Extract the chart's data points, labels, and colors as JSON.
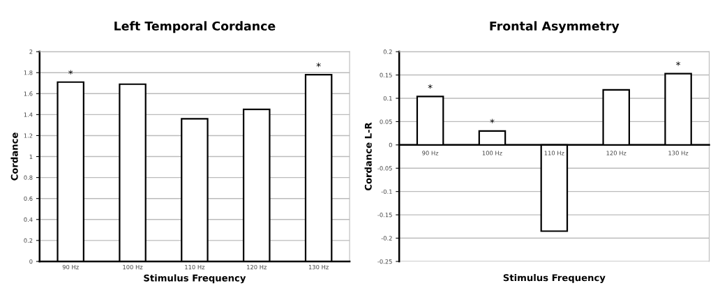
{
  "chart_data": [
    {
      "type": "bar",
      "title": "Left Temporal Cordance",
      "xlabel": "Stimulus Frequency",
      "ylabel": "Cordance",
      "categories": [
        "90 Hz",
        "100 Hz",
        "110 Hz",
        "120 Hz",
        "130 Hz"
      ],
      "values": [
        1.71,
        1.69,
        1.36,
        1.45,
        1.78
      ],
      "color": "#ffffff",
      "ylim": [
        0,
        2
      ],
      "yticks": [
        0,
        0.2,
        0.4,
        0.6,
        0.8,
        1,
        1.2,
        1.4,
        1.6,
        1.8,
        2
      ],
      "grid": "y",
      "annotations": [
        {
          "text": "*",
          "x": "90 Hz",
          "y": 1.71
        },
        {
          "text": "*",
          "x": "130 Hz",
          "y": 1.78
        }
      ]
    },
    {
      "type": "bar",
      "title": "Frontal Asymmetry",
      "xlabel": "Stimulus Frequency",
      "ylabel": "Cordance L-R",
      "categories": [
        "90 Hz",
        "100 Hz",
        "110 Hz",
        "120 Hz",
        "130 Hz"
      ],
      "values": [
        0.104,
        0.03,
        -0.185,
        0.118,
        0.153
      ],
      "color": "#ffffff",
      "ylim": [
        -0.25,
        0.2
      ],
      "yticks": [
        -0.25,
        -0.2,
        -0.15,
        -0.1,
        -0.05,
        0,
        0.05,
        0.1,
        0.15,
        0.2
      ],
      "grid": "y",
      "annotations": [
        {
          "text": "*",
          "x": "90 Hz",
          "y": 0.104
        },
        {
          "text": "*",
          "x": "100 Hz",
          "y": 0.03
        },
        {
          "text": "*",
          "x": "130 Hz",
          "y": 0.153
        }
      ]
    }
  ]
}
